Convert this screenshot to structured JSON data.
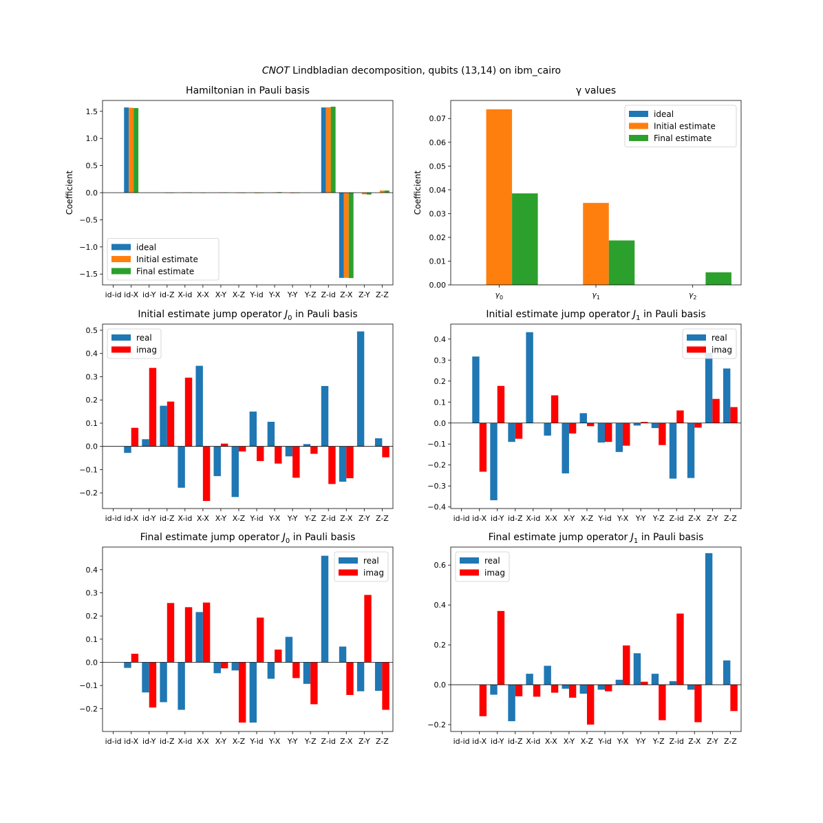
{
  "suptitle": {
    "italic": "CNOT",
    "rest": " Lindbladian decomposition, qubits (13,14) on ibm_cairo"
  },
  "colors": {
    "ideal": "#1f77b4",
    "initial": "#ff7f0e",
    "final": "#2ca02c",
    "real": "#1f77b4",
    "imag": "#ff0000"
  },
  "chart_data": [
    {
      "id": "hamiltonian",
      "type": "bar",
      "title": "Hamiltonian in Pauli basis",
      "ylabel": "Coefficient",
      "xlabel": "",
      "ylim": [
        -1.7,
        1.7
      ],
      "yticks": [
        -1.5,
        -1.0,
        -0.5,
        0.0,
        0.5,
        1.0,
        1.5
      ],
      "ytick_labels": [
        "−1.5",
        "−1.0",
        "−0.5",
        "0.0",
        "0.5",
        "1.0",
        "1.5"
      ],
      "categories": [
        "id-id",
        "id-X",
        "id-Y",
        "id-Z",
        "X-id",
        "X-X",
        "X-Y",
        "X-Z",
        "Y-id",
        "Y-X",
        "Y-Y",
        "Y-Z",
        "Z-id",
        "Z-X",
        "Z-Y",
        "Z-Z"
      ],
      "legend": "lower-left",
      "series": [
        {
          "name": "ideal",
          "color_key": "ideal",
          "values": [
            0,
            1.571,
            0,
            0,
            0,
            0,
            0,
            0,
            0,
            0,
            0,
            0,
            1.571,
            -1.571,
            0,
            0
          ]
        },
        {
          "name": "Initial estimate",
          "color_key": "initial",
          "values": [
            0,
            1.565,
            0,
            -0.005,
            0.005,
            -0.005,
            0.005,
            -0.005,
            -0.01,
            0.005,
            -0.01,
            0,
            1.575,
            -1.57,
            -0.03,
            0.04
          ]
        },
        {
          "name": "Final estimate",
          "color_key": "final",
          "values": [
            0,
            1.56,
            0,
            -0.005,
            0.005,
            0,
            0.005,
            -0.005,
            -0.005,
            0.01,
            -0.005,
            0,
            1.585,
            -1.575,
            -0.035,
            0.04
          ]
        }
      ]
    },
    {
      "id": "gamma",
      "type": "bar",
      "title": "γ values",
      "ylabel": "Coefficient",
      "xlabel": "",
      "ylim": [
        0,
        0.0776
      ],
      "yticks": [
        0,
        0.01,
        0.02,
        0.03,
        0.04,
        0.05,
        0.06,
        0.07
      ],
      "ytick_labels": [
        "0.00",
        "0.01",
        "0.02",
        "0.03",
        "0.04",
        "0.05",
        "0.06",
        "0.07"
      ],
      "categories": [
        "γ0",
        "γ1",
        "γ2"
      ],
      "legend": "top-right",
      "series": [
        {
          "name": "ideal",
          "color_key": "ideal",
          "values": [
            0,
            0,
            0
          ]
        },
        {
          "name": "Initial estimate",
          "color_key": "initial",
          "values": [
            0.0739,
            0.0345,
            0
          ]
        },
        {
          "name": "Final estimate",
          "color_key": "final",
          "values": [
            0.0385,
            0.0187,
            0.0053
          ]
        }
      ]
    },
    {
      "id": "initJ0",
      "type": "bar",
      "title": "Initial estimate jump operator J0 in Pauli basis",
      "ylabel": "",
      "xlabel": "",
      "ylim": [
        -0.2675,
        0.5265
      ],
      "yticks": [
        -0.2,
        -0.1,
        0.0,
        0.1,
        0.2,
        0.3,
        0.4,
        0.5
      ],
      "ytick_labels": [
        "−0.2",
        "−0.1",
        "0.0",
        "0.1",
        "0.2",
        "0.3",
        "0.4",
        "0.5"
      ],
      "categories": [
        "id-id",
        "id-X",
        "id-Y",
        "id-Z",
        "X-id",
        "X-X",
        "X-Y",
        "X-Z",
        "Y-id",
        "Y-X",
        "Y-Y",
        "Y-Z",
        "Z-id",
        "Z-X",
        "Z-Y",
        "Z-Z"
      ],
      "legend": "top-left",
      "series": [
        {
          "name": "real",
          "color_key": "real",
          "values": [
            0,
            -0.028,
            0.031,
            0.175,
            -0.178,
            0.347,
            -0.128,
            -0.218,
            0.15,
            0.106,
            -0.043,
            0.01,
            0.26,
            -0.152,
            0.495,
            0.035
          ]
        },
        {
          "name": "imag",
          "color_key": "imag",
          "values": [
            0,
            0.08,
            0.338,
            0.193,
            0.296,
            -0.235,
            0.012,
            -0.022,
            -0.063,
            -0.074,
            -0.135,
            -0.032,
            -0.162,
            -0.137,
            0,
            -0.047
          ]
        }
      ]
    },
    {
      "id": "initJ1",
      "type": "bar",
      "title": "Initial estimate jump operator J1 in Pauli basis",
      "ylabel": "",
      "xlabel": "",
      "ylim": [
        -0.4075,
        0.4715
      ],
      "yticks": [
        -0.4,
        -0.3,
        -0.2,
        -0.1,
        0.0,
        0.1,
        0.2,
        0.3,
        0.4
      ],
      "ytick_labels": [
        "−0.4",
        "−0.3",
        "−0.2",
        "−0.1",
        "0.0",
        "0.1",
        "0.2",
        "0.3",
        "0.4"
      ],
      "categories": [
        "id-id",
        "id-X",
        "id-Y",
        "id-Z",
        "X-id",
        "X-X",
        "X-Y",
        "X-Z",
        "Y-id",
        "Y-X",
        "Y-Y",
        "Y-Z",
        "Z-id",
        "Z-X",
        "Z-Y",
        "Z-Z"
      ],
      "legend": "top-right",
      "series": [
        {
          "name": "real",
          "color_key": "real",
          "values": [
            0,
            0.317,
            -0.368,
            -0.09,
            0.433,
            -0.06,
            -0.24,
            0.047,
            -0.093,
            -0.138,
            -0.012,
            -0.024,
            -0.265,
            -0.262,
            0.335,
            0.26
          ]
        },
        {
          "name": "imag",
          "color_key": "imag",
          "values": [
            0,
            -0.232,
            0.177,
            -0.075,
            0,
            0.132,
            -0.05,
            -0.015,
            -0.09,
            -0.108,
            0.005,
            -0.105,
            0.06,
            -0.022,
            0.115,
            0.076
          ]
        }
      ]
    },
    {
      "id": "finalJ0",
      "type": "bar",
      "title": "Final estimate jump operator J0 in Pauli basis",
      "ylabel": "",
      "xlabel": "",
      "ylim": [
        -0.2985,
        0.4975
      ],
      "yticks": [
        -0.2,
        -0.1,
        0.0,
        0.1,
        0.2,
        0.3,
        0.4
      ],
      "ytick_labels": [
        "−0.2",
        "−0.1",
        "0.0",
        "0.1",
        "0.2",
        "0.3",
        "0.4"
      ],
      "categories": [
        "id-id",
        "id-X",
        "id-Y",
        "id-Z",
        "X-id",
        "X-X",
        "X-Y",
        "X-Z",
        "Y-id",
        "Y-X",
        "Y-Y",
        "Y-Z",
        "Z-id",
        "Z-X",
        "Z-Y",
        "Z-Z"
      ],
      "legend": "top-right",
      "series": [
        {
          "name": "real",
          "color_key": "real",
          "values": [
            0,
            -0.024,
            -0.13,
            -0.172,
            -0.205,
            0.217,
            -0.047,
            -0.035,
            -0.26,
            -0.071,
            0.11,
            -0.093,
            0.46,
            0.068,
            -0.125,
            -0.123
          ]
        },
        {
          "name": "imag",
          "color_key": "imag",
          "values": [
            0,
            0.037,
            -0.195,
            0.256,
            0.238,
            0.258,
            -0.026,
            -0.26,
            0.193,
            0.055,
            -0.068,
            -0.181,
            0,
            -0.141,
            0.291,
            -0.205
          ]
        }
      ]
    },
    {
      "id": "finalJ1",
      "type": "bar",
      "title": "Final estimate jump operator J1 in Pauli basis",
      "ylabel": "",
      "xlabel": "",
      "ylim": [
        -0.2345,
        0.6905
      ],
      "yticks": [
        -0.2,
        0.0,
        0.2,
        0.4,
        0.6
      ],
      "ytick_labels": [
        "−0.2",
        "0.0",
        "0.2",
        "0.4",
        "0.6"
      ],
      "categories": [
        "id-id",
        "id-X",
        "id-Y",
        "id-Z",
        "X-id",
        "X-X",
        "X-Y",
        "X-Z",
        "Y-id",
        "Y-X",
        "Y-Y",
        "Y-Z",
        "Z-id",
        "Z-X",
        "Z-Y",
        "Z-Z"
      ],
      "legend": "top-left",
      "series": [
        {
          "name": "real",
          "color_key": "real",
          "values": [
            0,
            0,
            -0.05,
            -0.183,
            0.055,
            0.095,
            -0.02,
            -0.045,
            -0.025,
            0.025,
            0.158,
            0.055,
            0.018,
            -0.025,
            0.66,
            0.122
          ]
        },
        {
          "name": "imag",
          "color_key": "imag",
          "values": [
            0,
            -0.158,
            0.37,
            -0.058,
            -0.06,
            -0.04,
            -0.065,
            -0.2,
            -0.033,
            0.197,
            0.015,
            -0.178,
            0.357,
            -0.188,
            0,
            -0.132
          ]
        }
      ]
    }
  ]
}
